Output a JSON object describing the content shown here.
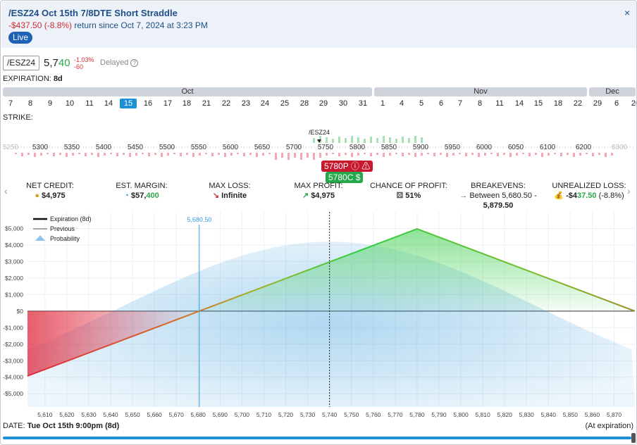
{
  "header": {
    "title": "/ESZ24 Oct 15th 7/8DTE Short Straddle",
    "return_value": "-$437.50 (-8.8%)",
    "return_text": "return since Oct 7, 2024 at 3:23 PM",
    "live_label": "Live",
    "close_glyph": "×"
  },
  "quote": {
    "symbol": "/ESZ24",
    "price_main": "5,7",
    "price_tail": "40",
    "change_pct": "-1.03%",
    "change_pts": "-60",
    "delayed_label": "Delayed",
    "help_glyph": "?"
  },
  "expiration": {
    "label": "EXPIRATION:",
    "value": "8d"
  },
  "months": [
    "Oct",
    "Nov",
    "Dec"
  ],
  "dates": [
    "7",
    "8",
    "9",
    "10",
    "11",
    "14",
    "15",
    "16",
    "17",
    "18",
    "21",
    "22",
    "23",
    "24",
    "25",
    "28",
    "29",
    "30",
    "31",
    "1",
    "4",
    "5",
    "6",
    "7",
    "8",
    "11",
    "14",
    "15",
    "18",
    "22",
    "29",
    "6",
    "20"
  ],
  "selected_date_index": 6,
  "strike": {
    "label": "STRIKE:",
    "underlying_label": "/ESZ24",
    "ticks": [
      "5250",
      "5300",
      "5350",
      "5400",
      "5450",
      "5500",
      "5550",
      "5600",
      "5650",
      "5700",
      "5750",
      "5800",
      "5850",
      "5900",
      "5950",
      "6000",
      "6050",
      "6100",
      "6200",
      "6300"
    ],
    "put_leg": "5780P",
    "call_leg": "5780C"
  },
  "stats": [
    {
      "label": "NET CREDIT:",
      "value": "$4,975",
      "icon": "coins-icon"
    },
    {
      "label": "EST. MARGIN:",
      "value_a": "$57,",
      "value_b": "400",
      "icon": "pie-icon"
    },
    {
      "label": "MAX LOSS:",
      "value": "Infinite",
      "icon": "arrow-down-icon"
    },
    {
      "label": "MAX PROFIT:",
      "value": "$4,975",
      "icon": "arrow-up-icon"
    },
    {
      "label": "CHANCE OF PROFIT:",
      "value": "51%",
      "icon": "dice-icon"
    },
    {
      "label": "BREAKEVENS:",
      "value_line1": "Between 5,680.50 -",
      "value_line2": "5,879.50",
      "icon": "arrow-right-icon"
    },
    {
      "label": "UNREALIZED LOSS:",
      "value_a": "-$4",
      "value_b": "37.50",
      "value_c": "(-8.8%)",
      "icon": "money-bag-icon"
    }
  ],
  "legend": {
    "expiration": "Expiration (8d)",
    "previous": "Previous",
    "probability": "Probability"
  },
  "footer": {
    "date_label": "DATE:",
    "date_value": "Tue Oct 15th 9:00pm (8d)",
    "at_expiration": "(At expiration)"
  },
  "colors": {
    "accent": "#1e90d6",
    "profit": "#2ecc40",
    "loss": "#e0283c",
    "title": "#1e4f86"
  },
  "chart_data": {
    "type": "line",
    "title": "",
    "xlabel": "",
    "ylabel": "",
    "xlim": [
      5602,
      5879.5
    ],
    "ylim": [
      -5800,
      6000
    ],
    "x_ticks": [
      5610,
      5620,
      5630,
      5640,
      5650,
      5660,
      5670,
      5680,
      5690,
      5700,
      5710,
      5720,
      5730,
      5740,
      5750,
      5760,
      5770,
      5780,
      5790,
      5800,
      5810,
      5820,
      5830,
      5840,
      5850,
      5860,
      5870
    ],
    "y_ticks": [
      -5000,
      -4000,
      -3000,
      -2000,
      -1000,
      0,
      1000,
      2000,
      3000,
      4000,
      5000
    ],
    "y_tick_labels": [
      "-$5,000",
      "-$4,000",
      "-$3,000",
      "-$2,000",
      "-$1,000",
      "$0",
      "$1,000",
      "$2,000",
      "$3,000",
      "$4,000",
      "$5,000"
    ],
    "series": [
      {
        "name": "Expiration (8d)",
        "x": [
          5602,
          5680.5,
          5780,
          5879.5
        ],
        "y": [
          -3925,
          0,
          4975,
          0
        ]
      }
    ],
    "breakeven_marker": {
      "x": 5680.5,
      "label": "5,680.50"
    },
    "current_price_marker": {
      "x": 5740
    },
    "probability_peak_x": 5740,
    "legend_position": "top-left",
    "grid": true
  }
}
